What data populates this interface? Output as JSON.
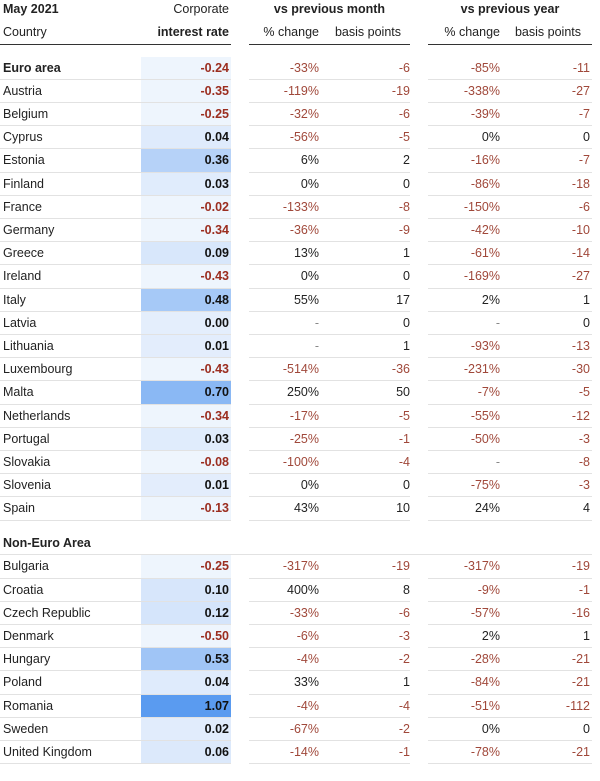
{
  "header": {
    "period": "May 2021",
    "rate_top": "Corporate",
    "month": "vs previous month",
    "year": "vs previous year",
    "country": "Country",
    "rate": "interest rate",
    "month_pct": "% change",
    "month_bp": "basis points",
    "year_pct": "% change",
    "year_bp": "basis points"
  },
  "groups": [
    {
      "label": "Euro area",
      "values": [
        "-0.24",
        "-33%",
        "-6",
        "-85%",
        "-11"
      ],
      "rows": [
        [
          "Austria",
          "-0.35",
          "-119%",
          "-19",
          "-338%",
          "-27"
        ],
        [
          "Belgium",
          "-0.25",
          "-32%",
          "-6",
          "-39%",
          "-7"
        ],
        [
          "Cyprus",
          "0.04",
          "-56%",
          "-5",
          "0%",
          "0"
        ],
        [
          "Estonia",
          "0.36",
          "6%",
          "2",
          "-16%",
          "-7"
        ],
        [
          "Finland",
          "0.03",
          "0%",
          "0",
          "-86%",
          "-18"
        ],
        [
          "France",
          "-0.02",
          "-133%",
          "-8",
          "-150%",
          "-6"
        ],
        [
          "Germany",
          "-0.34",
          "-36%",
          "-9",
          "-42%",
          "-10"
        ],
        [
          "Greece",
          "0.09",
          "13%",
          "1",
          "-61%",
          "-14"
        ],
        [
          "Ireland",
          "-0.43",
          "0%",
          "0",
          "-169%",
          "-27"
        ],
        [
          "Italy",
          "0.48",
          "55%",
          "17",
          "2%",
          "1"
        ],
        [
          "Latvia",
          "0.00",
          "-",
          "0",
          "-",
          "0"
        ],
        [
          "Lithuania",
          "0.01",
          "-",
          "1",
          "-93%",
          "-13"
        ],
        [
          "Luxembourg",
          "-0.43",
          "-514%",
          "-36",
          "-231%",
          "-30"
        ],
        [
          "Malta",
          "0.70",
          "250%",
          "50",
          "-7%",
          "-5"
        ],
        [
          "Netherlands",
          "-0.34",
          "-17%",
          "-5",
          "-55%",
          "-12"
        ],
        [
          "Portugal",
          "0.03",
          "-25%",
          "-1",
          "-50%",
          "-3"
        ],
        [
          "Slovakia",
          "-0.08",
          "-100%",
          "-4",
          "-",
          "-8"
        ],
        [
          "Slovenia",
          "0.01",
          "0%",
          "0",
          "-75%",
          "-3"
        ],
        [
          "Spain",
          "-0.13",
          "43%",
          "10",
          "24%",
          "4"
        ]
      ]
    },
    {
      "label": "Non-Euro Area",
      "rows": [
        [
          "Bulgaria",
          "-0.25",
          "-317%",
          "-19",
          "-317%",
          "-19"
        ],
        [
          "Croatia",
          "0.10",
          "400%",
          "8",
          "-9%",
          "-1"
        ],
        [
          "Czech Republic",
          "0.12",
          "-33%",
          "-6",
          "-57%",
          "-16"
        ],
        [
          "Denmark",
          "-0.50",
          "-6%",
          "-3",
          "2%",
          "1"
        ],
        [
          "Hungary",
          "0.53",
          "-4%",
          "-2",
          "-28%",
          "-21"
        ],
        [
          "Poland",
          "0.04",
          "33%",
          "1",
          "-84%",
          "-21"
        ],
        [
          "Romania",
          "1.07",
          "-4%",
          "-4",
          "-51%",
          "-112"
        ],
        [
          "Sweden",
          "0.02",
          "-67%",
          "-2",
          "0%",
          "0"
        ],
        [
          "United Kingdom",
          "0.06",
          "-14%",
          "-1",
          "-78%",
          "-21"
        ]
      ]
    }
  ]
}
